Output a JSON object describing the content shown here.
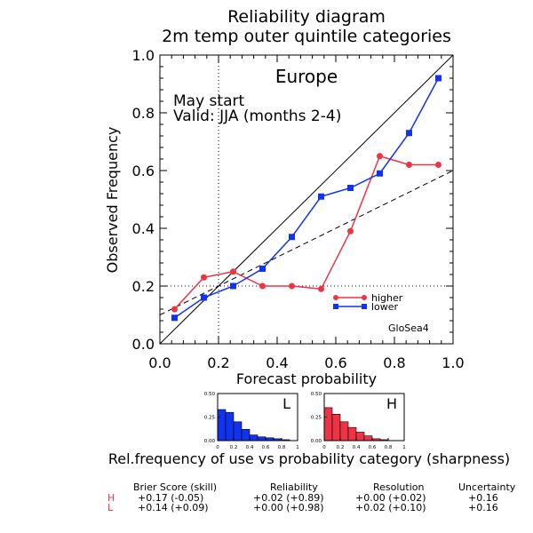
{
  "page": {
    "title_line1": "Reliability diagram",
    "title_line2": "2m temp outer quintile categories"
  },
  "chart_data": {
    "type": "line",
    "xlabel": "Forecast probability",
    "ylabel": "Observed Frequency",
    "xlim": [
      0,
      1
    ],
    "ylim": [
      0,
      1
    ],
    "x_ticks": [
      "0.0",
      "0.2",
      "0.4",
      "0.6",
      "0.8",
      "1.0"
    ],
    "y_ticks": [
      "0.0",
      "0.2",
      "0.4",
      "0.6",
      "0.8",
      "1.0"
    ],
    "region": "Europe",
    "start_text": "May start",
    "valid_text": "Valid: JJA (months 2-4)",
    "model": "GloSea4",
    "reference_lines": {
      "diagonal": [
        [
          0,
          0
        ],
        [
          1,
          1
        ]
      ],
      "no_skill": [
        [
          0,
          0.1
        ],
        [
          1,
          0.6
        ]
      ],
      "climatology_x": 0.2,
      "climatology_y": 0.2
    },
    "series": [
      {
        "name": "higher",
        "color": "#ee3344",
        "marker": "circle",
        "x": [
          0.05,
          0.15,
          0.25,
          0.35,
          0.45,
          0.55,
          0.65,
          0.75,
          0.85,
          0.95
        ],
        "y": [
          0.12,
          0.23,
          0.25,
          0.2,
          0.2,
          0.19,
          0.39,
          0.65,
          0.62,
          0.62
        ]
      },
      {
        "name": "lower",
        "color": "#1133ee",
        "marker": "square",
        "x": [
          0.05,
          0.15,
          0.25,
          0.35,
          0.45,
          0.55,
          0.65,
          0.75,
          0.85,
          0.95
        ],
        "y": [
          0.09,
          0.16,
          0.2,
          0.26,
          0.37,
          0.51,
          0.54,
          0.59,
          0.73,
          0.92
        ]
      }
    ],
    "sharpness": {
      "caption": "Rel.frequency of use vs probability category (sharpness)",
      "y_ticks": [
        "0.00",
        "0.25",
        "0.50"
      ],
      "x_ticks": [
        "0",
        "0.2",
        "0.4",
        "0.6",
        "0.8",
        "1"
      ],
      "ylim": [
        0,
        0.5
      ],
      "panels": [
        {
          "label": "L",
          "color": "#1133ee",
          "values": [
            0.33,
            0.3,
            0.2,
            0.12,
            0.06,
            0.04,
            0.03,
            0.02,
            0.01,
            0.0
          ]
        },
        {
          "label": "H",
          "color": "#ee3344",
          "values": [
            0.35,
            0.28,
            0.2,
            0.14,
            0.09,
            0.05,
            0.02,
            0.01,
            0.0,
            0.0
          ]
        }
      ]
    },
    "scores": {
      "headers": [
        "Brier Score (skill)",
        "Reliability",
        "Resolution",
        "Uncertainty"
      ],
      "rows": [
        {
          "label": "H",
          "color": "#ee3344",
          "brier": "+0.17 (-0.05)",
          "reliability": "+0.02 (+0.89)",
          "resolution": "+0.00 (+0.02)",
          "uncertainty": "+0.16"
        },
        {
          "label": "L",
          "color": "#ee3344",
          "brier": "+0.14 (+0.09)",
          "reliability": "+0.00 (+0.98)",
          "resolution": "+0.02 (+0.10)",
          "uncertainty": "+0.16"
        }
      ]
    }
  }
}
